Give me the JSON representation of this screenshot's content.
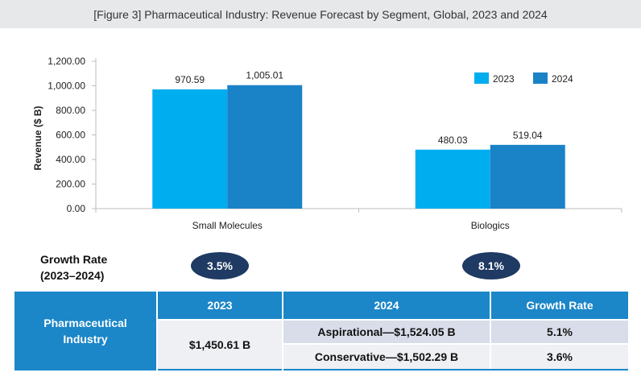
{
  "header": {
    "title": "[Figure 3] Pharmaceutical Industry: Revenue Forecast by Segment, Global, 2023 and 2024"
  },
  "chart_data": {
    "type": "bar",
    "title": "[Figure 3] Pharmaceutical Industry: Revenue Forecast by Segment, Global, 2023 and 2024",
    "categories": [
      "Small Molecules",
      "Biologics"
    ],
    "series": [
      {
        "name": "2023",
        "values": [
          970.59,
          480.03
        ],
        "labels": [
          "970.59",
          "480.03"
        ],
        "color": "#00aeef"
      },
      {
        "name": "2024",
        "values": [
          1005.01,
          519.04
        ],
        "labels": [
          "1,005.01",
          "519.04"
        ],
        "color": "#1a82c7"
      }
    ],
    "xlabel": "",
    "ylabel": "Revenue ($ B)",
    "ylim": [
      0,
      1200
    ],
    "yticks": [
      {
        "value": 0,
        "label": "0.00"
      },
      {
        "value": 200,
        "label": "200.00"
      },
      {
        "value": 400,
        "label": "400.00"
      },
      {
        "value": 600,
        "label": "600.00"
      },
      {
        "value": 800,
        "label": "800.00"
      },
      {
        "value": 1000,
        "label": "1,000.00"
      },
      {
        "value": 1200,
        "label": "1,200.00"
      }
    ],
    "legend_position": "top-right",
    "grid": false
  },
  "growth": {
    "label_line1": "Growth Rate",
    "label_line2": "(2023–2024)",
    "small_molecules": "3.5%",
    "biologics": "8.1%"
  },
  "table": {
    "row_label_line1": "Pharmaceutical",
    "row_label_line2": "Industry",
    "header_2023": "2023",
    "header_2024": "2024",
    "header_growth": "Growth Rate",
    "value_2023": "$1,450.61 B",
    "aspirational": "Aspirational—$1,524.05 B",
    "aspirational_growth": "5.1%",
    "conservative": "Conservative—$1,502.29 B",
    "conservative_growth": "3.6%"
  },
  "colors": {
    "bar_2023": "#00aeef",
    "bar_2024": "#1a82c7",
    "pill": "#1f3a63",
    "table_header": "#1b86c8"
  }
}
